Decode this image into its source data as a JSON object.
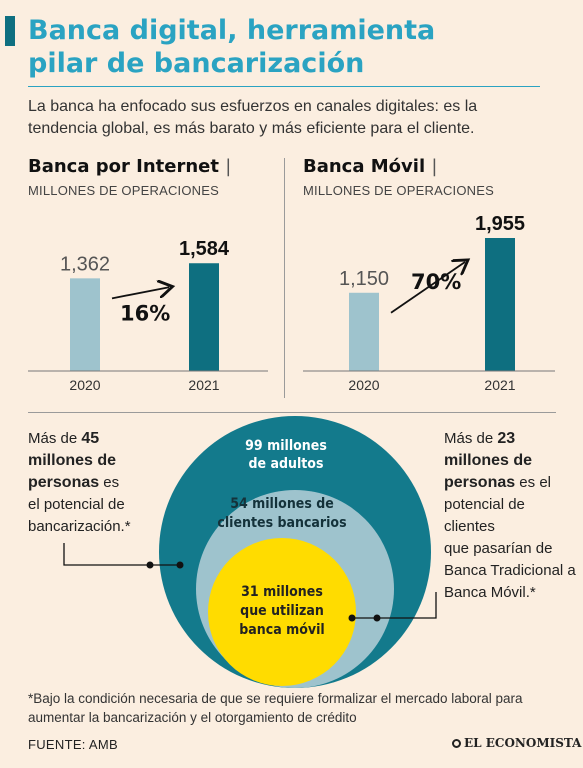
{
  "header": {
    "title_line1": "Banca digital, herramienta",
    "title_line2": "pilar de bancarización",
    "subtitle_line1": "La banca ha enfocado sus esfuerzos en canales digitales: es la",
    "subtitle_line2": "tendencia global, es más barato y más eficiente para el cliente."
  },
  "chart_data": [
    {
      "type": "bar",
      "title": "Banca por Internet",
      "ylabel": "MILLONES DE OPERACIONES",
      "categories": [
        "2020",
        "2021"
      ],
      "values": [
        1362,
        1584
      ],
      "value_labels": [
        "1,362",
        "1,584"
      ],
      "growth_label": "16%",
      "colors": [
        "#9ec3cd",
        "#0e6f80"
      ],
      "ylim": [
        0,
        1955
      ]
    },
    {
      "type": "bar",
      "title": "Banca Móvil",
      "ylabel": "MILLONES DE OPERACIONES",
      "categories": [
        "2020",
        "2021"
      ],
      "values": [
        1150,
        1955
      ],
      "value_labels": [
        "1,150",
        "1,955"
      ],
      "growth_label": "70%",
      "colors": [
        "#9ec3cd",
        "#0e6f80"
      ],
      "ylim": [
        0,
        1955
      ]
    }
  ],
  "panels": {
    "separator": "|"
  },
  "circles": {
    "outer_line1": "99 millones",
    "outer_line2": "de adultos",
    "middle_line1": "54 millones de",
    "middle_line2": "clientes bancarios",
    "inner_line1": "31 millones",
    "inner_line2": "que utilizan",
    "inner_line3": "banca móvil",
    "colors": {
      "outer": "#137a8c",
      "middle": "#9ec3cd",
      "inner": "#ffdc00"
    }
  },
  "notes": {
    "left": {
      "l1_a": "Más de ",
      "l1_b": "45",
      "l2": "millones de",
      "l3_a": "personas",
      "l3_b": " es",
      "l4": "el potencial de",
      "l5": "bancarización.*"
    },
    "right": {
      "l1_a": "Más de ",
      "l1_b": "23",
      "l2": "millones de",
      "l3_a": "personas",
      "l3_b": " es el",
      "l4": "potencial de clientes",
      "l5": "que pasarían de",
      "l6": "Banca Tradicional a",
      "l7": "Banca Móvil.*"
    }
  },
  "footer": {
    "footnote_line1": "*Bajo la condición necesaria de que se requiere formalizar el mercado laboral para",
    "footnote_line2": "aumentar la bancarización y el otorgamiento de crédito",
    "source": "FUENTE: AMB",
    "brand": "EL ECONOMISTA"
  }
}
